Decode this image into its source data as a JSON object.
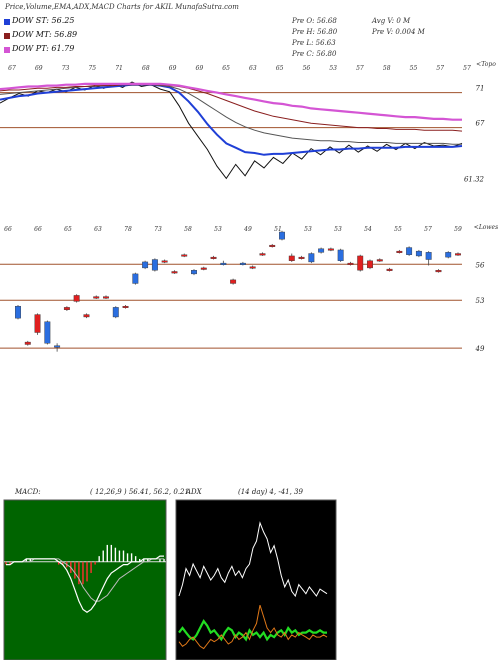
{
  "header": {
    "title": "Price,Volume,EMA,ADX,MACD Charts for AKIL",
    "site": "MunafaSutra.com"
  },
  "legend": [
    {
      "label": "DOW ST: 56.25",
      "color": "#1f3fd6"
    },
    {
      "label": "DOW MT: 56.89",
      "color": "#8a1f1f"
    },
    {
      "label": "DOW PT: 61.79",
      "color": "#d455d4"
    }
  ],
  "stats": {
    "open": "Pre  O: 56.68",
    "high": "Pre  H: 56.80",
    "low": "Pre  L: 56.63",
    "close": "Pre  C: 56.80",
    "avg_vol": "Avg V: 0  M",
    "pre_vol": "Pre  V: 0.004  M"
  },
  "chart_data": [
    {
      "name": "ema-panel",
      "type": "line",
      "right_label": "<Topo",
      "top_ticks": [
        "67",
        "69",
        "73",
        "75",
        "71",
        "68",
        "69",
        "69",
        "65",
        "63",
        "65",
        "56",
        "53",
        "57",
        "58",
        "55",
        "57",
        "57"
      ],
      "y_ticks": [
        71,
        67
      ],
      "last_value_label": "61.32",
      "h_lines": [
        71,
        67
      ],
      "ylim": [
        58.5,
        74.5
      ],
      "series": [
        {
          "key": "price",
          "color": "#111111",
          "values": [
            69.8,
            70.4,
            70.9,
            70.6,
            71.2,
            71.0,
            71.4,
            71.1,
            71.6,
            71.3,
            71.8,
            71.5,
            72.0,
            71.6,
            72.2,
            71.7,
            71.9,
            71.4,
            71.1,
            69.5,
            67.5,
            66.0,
            64.5,
            62.6,
            61.2,
            62.8,
            61.5,
            63.2,
            62.4,
            63.6,
            62.9,
            64.1,
            63.4,
            64.6,
            63.9,
            64.8,
            64.1,
            65.0,
            64.2,
            64.9,
            64.3,
            65.1,
            64.5,
            65.2,
            64.6,
            65.3,
            64.9,
            65.0,
            64.8,
            65.2
          ]
        },
        {
          "key": "ema_short",
          "color": "#1f3fd6",
          "values": [
            70.2,
            70.4,
            70.6,
            70.7,
            70.9,
            71.0,
            71.1,
            71.2,
            71.3,
            71.4,
            71.5,
            71.6,
            71.7,
            71.8,
            71.9,
            71.9,
            71.9,
            71.8,
            71.6,
            71.0,
            70.0,
            68.8,
            67.4,
            66.2,
            65.2,
            64.7,
            64.2,
            64.1,
            63.9,
            64.0,
            64.0,
            64.1,
            64.2,
            64.3,
            64.4,
            64.5,
            64.5,
            64.6,
            64.6,
            64.7,
            64.7,
            64.7,
            64.7,
            64.8,
            64.8,
            64.8,
            64.8,
            64.8,
            64.8,
            64.9
          ]
        },
        {
          "key": "ema_mid",
          "color": "#555555",
          "values": [
            70.8,
            70.9,
            71.0,
            71.1,
            71.2,
            71.3,
            71.4,
            71.5,
            71.6,
            71.7,
            71.7,
            71.8,
            71.8,
            71.9,
            71.9,
            71.9,
            71.9,
            71.8,
            71.7,
            71.4,
            70.9,
            70.3,
            69.6,
            68.9,
            68.2,
            67.6,
            67.1,
            66.7,
            66.4,
            66.2,
            66.0,
            65.8,
            65.7,
            65.6,
            65.5,
            65.5,
            65.4,
            65.4,
            65.3,
            65.3,
            65.3,
            65.3,
            65.2,
            65.2,
            65.2,
            65.2,
            65.2,
            65.2,
            65.1,
            65.1
          ]
        },
        {
          "key": "ema_long",
          "color": "#8a1f1f",
          "values": [
            71.2,
            71.3,
            71.3,
            71.4,
            71.5,
            71.5,
            71.6,
            71.6,
            71.7,
            71.7,
            71.8,
            71.8,
            71.8,
            71.9,
            71.9,
            71.9,
            71.9,
            71.9,
            71.8,
            71.7,
            71.5,
            71.2,
            70.9,
            70.5,
            70.1,
            69.7,
            69.3,
            68.9,
            68.6,
            68.3,
            68.1,
            67.9,
            67.7,
            67.5,
            67.4,
            67.3,
            67.2,
            67.1,
            67.0,
            67.0,
            66.9,
            66.9,
            66.8,
            66.8,
            66.8,
            66.7,
            66.7,
            66.7,
            66.7,
            66.6
          ]
        },
        {
          "key": "ema_pt",
          "color": "#d455d4",
          "values": [
            71.4,
            71.5,
            71.6,
            71.7,
            71.7,
            71.8,
            71.8,
            71.9,
            71.9,
            72.0,
            72.0,
            72.0,
            72.0,
            72.0,
            72.0,
            72.0,
            72.0,
            72.0,
            71.9,
            71.8,
            71.6,
            71.4,
            71.2,
            71.0,
            70.8,
            70.6,
            70.4,
            70.2,
            70.0,
            69.8,
            69.7,
            69.5,
            69.4,
            69.2,
            69.1,
            69.0,
            68.9,
            68.8,
            68.7,
            68.6,
            68.5,
            68.4,
            68.3,
            68.2,
            68.2,
            68.1,
            68.0,
            68.0,
            67.9,
            67.9
          ]
        }
      ]
    },
    {
      "name": "candle-panel",
      "type": "candlestick",
      "right_label": "<Lowes",
      "bottom_ticks": [
        "66",
        "66",
        "65",
        "63",
        "78",
        "73",
        "58",
        "53",
        "49",
        "51",
        "53",
        "53",
        "54",
        "55",
        "57",
        "59"
      ],
      "y_ticks": [
        56,
        53,
        49
      ],
      "h_lines": [
        56,
        53,
        49
      ],
      "ylim": [
        47.0,
        58.7
      ],
      "candles": [
        {
          "o": 51.5,
          "c": 52.5,
          "h": 52.6,
          "l": 51.4
        },
        {
          "o": 49.5,
          "c": 49.3,
          "h": 49.6,
          "l": 49.2
        },
        {
          "o": 51.8,
          "c": 50.3,
          "h": 51.9,
          "l": 50.1
        },
        {
          "o": 49.4,
          "c": 51.2,
          "h": 51.3,
          "l": 49.3
        },
        {
          "o": 49.1,
          "c": 49.2,
          "h": 49.4,
          "l": 48.7
        },
        {
          "o": 52.4,
          "c": 52.2,
          "h": 52.5,
          "l": 52.1
        },
        {
          "o": 53.4,
          "c": 52.9,
          "h": 53.5,
          "l": 52.8
        },
        {
          "o": 51.8,
          "c": 51.6,
          "h": 51.9,
          "l": 51.5
        },
        {
          "o": 53.3,
          "c": 53.2,
          "h": 53.4,
          "l": 53.1
        },
        {
          "o": 53.3,
          "c": 53.2,
          "h": 53.4,
          "l": 53.1
        },
        {
          "o": 51.6,
          "c": 52.4,
          "h": 52.5,
          "l": 51.5
        },
        {
          "o": 52.5,
          "c": 52.4,
          "h": 52.6,
          "l": 52.3
        },
        {
          "o": 54.4,
          "c": 55.2,
          "h": 55.3,
          "l": 54.3
        },
        {
          "o": 55.7,
          "c": 56.2,
          "h": 56.3,
          "l": 55.6
        },
        {
          "o": 55.5,
          "c": 56.4,
          "h": 56.5,
          "l": 55.4
        },
        {
          "o": 56.3,
          "c": 56.2,
          "h": 56.4,
          "l": 56.1
        },
        {
          "o": 55.4,
          "c": 55.3,
          "h": 55.5,
          "l": 55.2
        },
        {
          "o": 56.8,
          "c": 56.7,
          "h": 56.9,
          "l": 56.6
        },
        {
          "o": 55.2,
          "c": 55.5,
          "h": 55.6,
          "l": 55.1
        },
        {
          "o": 55.7,
          "c": 55.6,
          "h": 55.8,
          "l": 55.5
        },
        {
          "o": 56.6,
          "c": 56.5,
          "h": 56.7,
          "l": 56.4
        },
        {
          "o": 56.0,
          "c": 56.1,
          "h": 56.3,
          "l": 55.9
        },
        {
          "o": 54.7,
          "c": 54.4,
          "h": 54.8,
          "l": 54.3
        },
        {
          "o": 56.0,
          "c": 56.1,
          "h": 56.2,
          "l": 55.9
        },
        {
          "o": 55.8,
          "c": 55.7,
          "h": 55.9,
          "l": 55.6
        },
        {
          "o": 56.9,
          "c": 56.8,
          "h": 57.0,
          "l": 56.7
        },
        {
          "o": 57.6,
          "c": 57.5,
          "h": 57.7,
          "l": 57.4
        },
        {
          "o": 58.1,
          "c": 58.7,
          "h": 58.8,
          "l": 58.0
        },
        {
          "o": 56.7,
          "c": 56.3,
          "h": 56.9,
          "l": 56.2
        },
        {
          "o": 56.6,
          "c": 56.5,
          "h": 56.7,
          "l": 56.4
        },
        {
          "o": 56.2,
          "c": 56.9,
          "h": 57.0,
          "l": 56.1
        },
        {
          "o": 57.0,
          "c": 57.3,
          "h": 57.4,
          "l": 56.9
        },
        {
          "o": 57.3,
          "c": 57.2,
          "h": 57.4,
          "l": 57.1
        },
        {
          "o": 56.3,
          "c": 57.2,
          "h": 57.3,
          "l": 56.2
        },
        {
          "o": 56.1,
          "c": 56.0,
          "h": 56.2,
          "l": 55.9
        },
        {
          "o": 56.7,
          "c": 55.5,
          "h": 56.8,
          "l": 55.4
        },
        {
          "o": 56.3,
          "c": 55.7,
          "h": 56.4,
          "l": 55.6
        },
        {
          "o": 56.4,
          "c": 56.3,
          "h": 56.5,
          "l": 56.2
        },
        {
          "o": 55.6,
          "c": 55.5,
          "h": 55.7,
          "l": 55.4
        },
        {
          "o": 57.1,
          "c": 57.0,
          "h": 57.2,
          "l": 56.9
        },
        {
          "o": 56.8,
          "c": 57.4,
          "h": 57.5,
          "l": 56.7
        },
        {
          "o": 56.7,
          "c": 57.1,
          "h": 57.2,
          "l": 56.6
        },
        {
          "o": 56.4,
          "c": 57.0,
          "h": 57.1,
          "l": 55.9
        },
        {
          "o": 55.5,
          "c": 55.4,
          "h": 55.6,
          "l": 55.3
        },
        {
          "o": 56.6,
          "c": 57.0,
          "h": 57.1,
          "l": 56.5
        },
        {
          "o": 56.9,
          "c": 56.8,
          "h": 57.0,
          "l": 56.7
        }
      ]
    },
    {
      "name": "macd-panel",
      "type": "line",
      "title": "MACD:",
      "params": "( 12,26,9 ) 56.41, 56.2, 0.21",
      "ylim": [
        -3.5,
        2.2
      ],
      "series": [
        {
          "key": "macd",
          "color": "#ffffff",
          "values": [
            -0.1,
            -0.1,
            0.0,
            0.0,
            0.0,
            0.1,
            0.1,
            0.1,
            0.1,
            0.1,
            0.1,
            0.1,
            0.1,
            0.0,
            -0.1,
            -0.3,
            -0.6,
            -1.0,
            -1.4,
            -1.7,
            -1.8,
            -1.7,
            -1.5,
            -1.2,
            -0.9,
            -0.6,
            -0.4,
            -0.3,
            -0.2,
            -0.1,
            -0.1,
            0.0,
            0.0,
            0.0,
            0.1,
            0.1,
            0.1,
            0.1,
            0.2,
            0.2
          ]
        },
        {
          "key": "signal",
          "color": "#bbbbbb",
          "values": [
            0.0,
            0.0,
            0.0,
            0.0,
            0.0,
            0.0,
            0.0,
            0.1,
            0.1,
            0.1,
            0.1,
            0.1,
            0.1,
            0.1,
            0.0,
            -0.1,
            -0.2,
            -0.4,
            -0.6,
            -0.9,
            -1.1,
            -1.3,
            -1.4,
            -1.4,
            -1.3,
            -1.2,
            -1.0,
            -0.8,
            -0.6,
            -0.5,
            -0.4,
            -0.3,
            -0.2,
            -0.1,
            0.0,
            0.0,
            0.1,
            0.1,
            0.1,
            0.1
          ]
        }
      ]
    },
    {
      "name": "adx-panel",
      "type": "line",
      "title": "ADX",
      "params": "(14 day) 4, -41, 39",
      "ylim": [
        0,
        70
      ],
      "series": [
        {
          "key": "adx",
          "color": "#ffffff",
          "values": [
            28,
            33,
            40,
            37,
            42,
            39,
            36,
            41,
            38,
            35,
            37,
            40,
            36,
            34,
            38,
            41,
            37,
            39,
            36,
            40,
            42,
            49,
            52,
            60,
            56,
            53,
            47,
            50,
            44,
            37,
            32,
            35,
            30,
            28,
            33,
            31,
            29,
            32,
            30,
            28,
            31,
            30,
            29
          ]
        },
        {
          "key": "di_minus",
          "color": "#22dd22",
          "values": [
            12,
            14,
            12,
            10,
            9,
            11,
            14,
            17,
            15,
            12,
            13,
            11,
            9,
            12,
            14,
            13,
            10,
            12,
            11,
            9,
            13,
            11,
            12,
            10,
            12,
            9,
            11,
            10,
            12,
            13,
            11,
            14,
            12,
            13,
            11,
            12,
            12,
            13,
            12,
            12,
            13,
            12,
            12
          ]
        },
        {
          "key": "di_plus",
          "color": "#e07818",
          "values": [
            8,
            6,
            7,
            9,
            10,
            8,
            6,
            5,
            7,
            9,
            8,
            9,
            11,
            9,
            7,
            8,
            11,
            9,
            10,
            12,
            9,
            13,
            16,
            24,
            19,
            14,
            12,
            14,
            11,
            10,
            12,
            9,
            11,
            10,
            12,
            11,
            10,
            9,
            11,
            10,
            10,
            11,
            10
          ]
        }
      ]
    }
  ]
}
